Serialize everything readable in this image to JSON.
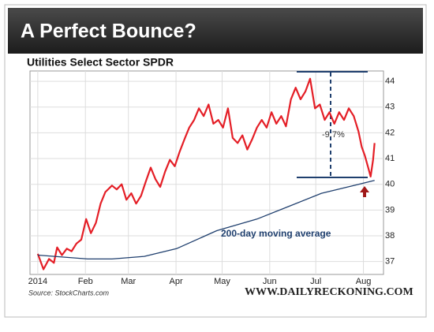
{
  "chart_data": {
    "type": "line",
    "title": "A Perfect Bounce?",
    "subtitle": "Utilities Select Sector SPDR",
    "source": "Source: StockCharts.com",
    "credit": "WWW.DAILYRECKONING.COM",
    "annotations": [
      "-9.7%"
    ],
    "xlim": [
      -2,
      222
    ],
    "xticks": [
      {
        "value": 0,
        "label": "2014"
      },
      {
        "value": 31,
        "label": "Feb"
      },
      {
        "value": 59,
        "label": "Mar"
      },
      {
        "value": 90,
        "label": "Apr"
      },
      {
        "value": 120,
        "label": "May"
      },
      {
        "value": 151,
        "label": "Jun"
      },
      {
        "value": 181,
        "label": "Jul"
      },
      {
        "value": 212,
        "label": "Aug"
      }
    ],
    "ylim": [
      36.5,
      44.4
    ],
    "yticks": [
      37,
      38,
      39,
      40,
      41,
      42,
      43,
      44
    ],
    "grid": true,
    "series": [
      {
        "color": "#e41e26",
        "x": [
          0,
          3.7,
          7.3,
          10.5,
          12.6,
          15.7,
          18.9,
          22,
          25.2,
          28.3,
          31.5,
          34.6,
          37.8,
          40.9,
          44,
          48.3,
          51.4,
          54.6,
          57.7,
          60.9,
          64,
          67.2,
          70.3,
          73.5,
          76.6,
          79.7,
          82.9,
          86,
          89.2,
          92.3,
          95.5,
          98.6,
          101.8,
          104.9,
          108,
          111.2,
          114.3,
          117.5,
          120.6,
          123.8,
          126.9,
          130.1,
          133.2,
          136.4,
          139.6,
          142.7,
          145.8,
          149,
          152.2,
          155.3,
          158.5,
          161.6,
          164.8,
          167.9,
          171.1,
          174.2,
          177.3,
          180.5,
          183.6,
          186.8,
          189.9,
          193.1,
          196.2,
          199.4,
          202.5,
          205.7,
          208.8,
          210.9,
          213,
          215.1,
          216.7,
          218.3,
          219.3
        ],
        "values": [
          37.3,
          36.7,
          37.1,
          36.95,
          37.55,
          37.25,
          37.5,
          37.4,
          37.7,
          37.85,
          38.65,
          38.1,
          38.5,
          39.25,
          39.7,
          39.95,
          39.8,
          40.0,
          39.4,
          39.65,
          39.25,
          39.55,
          40.1,
          40.65,
          40.2,
          39.9,
          40.5,
          40.95,
          40.7,
          41.25,
          41.75,
          42.2,
          42.5,
          42.95,
          42.65,
          43.1,
          42.35,
          42.5,
          42.2,
          42.95,
          41.8,
          41.6,
          41.9,
          41.35,
          41.75,
          42.2,
          42.5,
          42.2,
          42.8,
          42.35,
          42.65,
          42.25,
          43.3,
          43.75,
          43.3,
          43.6,
          44.1,
          42.95,
          43.1,
          42.5,
          42.8,
          42.35,
          42.8,
          42.5,
          42.95,
          42.65,
          42.05,
          41.45,
          41.1,
          40.65,
          40.3,
          40.95,
          41.6
        ]
      },
      {
        "name": "200-day moving average",
        "color": "#1f3f6e",
        "x": [
          0,
          32.5,
          48.3,
          69.3,
          90.3,
          116.5,
          142.7,
          163.7,
          184.7,
          205.7,
          219.3
        ],
        "values": [
          37.25,
          37.1,
          37.1,
          37.2,
          37.5,
          38.2,
          38.65,
          39.15,
          39.65,
          39.95,
          40.15
        ]
      }
    ]
  }
}
